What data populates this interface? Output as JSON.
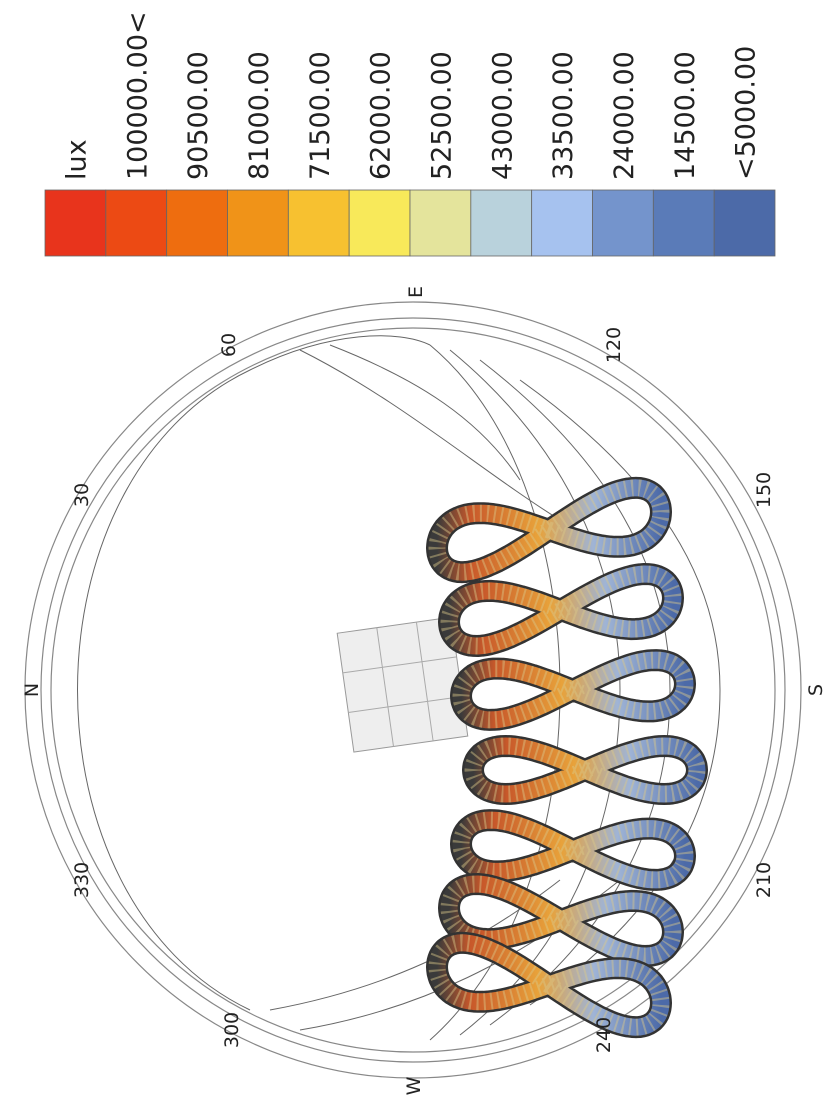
{
  "legend": {
    "unit": "lux",
    "items": [
      {
        "label": "100000.00<",
        "color": "#ec4a14"
      },
      {
        "label": "90500.00",
        "color": "#ee6d0f"
      },
      {
        "label": "81000.00",
        "color": "#f09318"
      },
      {
        "label": "71500.00",
        "color": "#f7c130"
      },
      {
        "label": "62000.00",
        "color": "#f8e95a"
      },
      {
        "label": "52500.00",
        "color": "#e4e49c"
      },
      {
        "label": "43000.00",
        "color": "#b9d2dc"
      },
      {
        "label": "33500.00",
        "color": "#a6c2ef"
      },
      {
        "label": "24000.00",
        "color": "#7494cc"
      },
      {
        "label": "14500.00",
        "color": "#5a7bb8"
      },
      {
        "label": "<5000.00",
        "color": "#4c6aa8"
      }
    ],
    "unit_color": "#e8341c"
  },
  "compass": {
    "labels": [
      "E",
      "S",
      "N",
      "W",
      "60",
      "30",
      "330",
      "300",
      "120",
      "150",
      "210",
      "240"
    ]
  }
}
